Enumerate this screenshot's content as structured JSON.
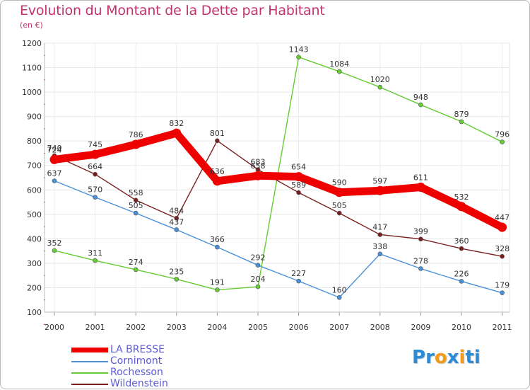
{
  "chart_data": {
    "type": "line",
    "title": "Evolution du Montant de la Dette par Habitant",
    "subtitle": "(en €)",
    "xlabel": "",
    "ylabel": "",
    "categories": [
      "2000",
      "2001",
      "2002",
      "2003",
      "2004",
      "2005",
      "2006",
      "2007",
      "2008",
      "2009",
      "2010",
      "2011"
    ],
    "ylim": [
      100,
      1200
    ],
    "yticks": [
      100,
      200,
      300,
      400,
      500,
      600,
      700,
      800,
      900,
      1000,
      1100,
      1200
    ],
    "grid": true,
    "series": [
      {
        "name": "LA BRESSE",
        "color": "#ee0000",
        "values": [
          724,
          745,
          786,
          832,
          636,
          658,
          654,
          590,
          597,
          611,
          532,
          447
        ]
      },
      {
        "name": "Cornimont",
        "color": "#4a90d9",
        "values": [
          637,
          570,
          505,
          437,
          366,
          292,
          227,
          160,
          338,
          278,
          226,
          179
        ]
      },
      {
        "name": "Rochesson",
        "color": "#66cc33",
        "values": [
          352,
          311,
          274,
          235,
          191,
          204,
          1143,
          1084,
          1020,
          948,
          879,
          796
        ]
      },
      {
        "name": "Wildenstein",
        "color": "#7a1f1f",
        "values": [
          740,
          664,
          558,
          484,
          801,
          683,
          589,
          505,
          417,
          399,
          360,
          328
        ]
      }
    ]
  },
  "logo": {
    "text": "Proxiti",
    "letters": [
      "P",
      "r",
      "o",
      "x",
      "i",
      "t",
      "i"
    ],
    "colors": [
      "#2a8bd6",
      "#2a8bd6",
      "#f39a1b",
      "#2a8bd6",
      "#f39a1b",
      "#2a8bd6",
      "#2a8bd6"
    ]
  }
}
